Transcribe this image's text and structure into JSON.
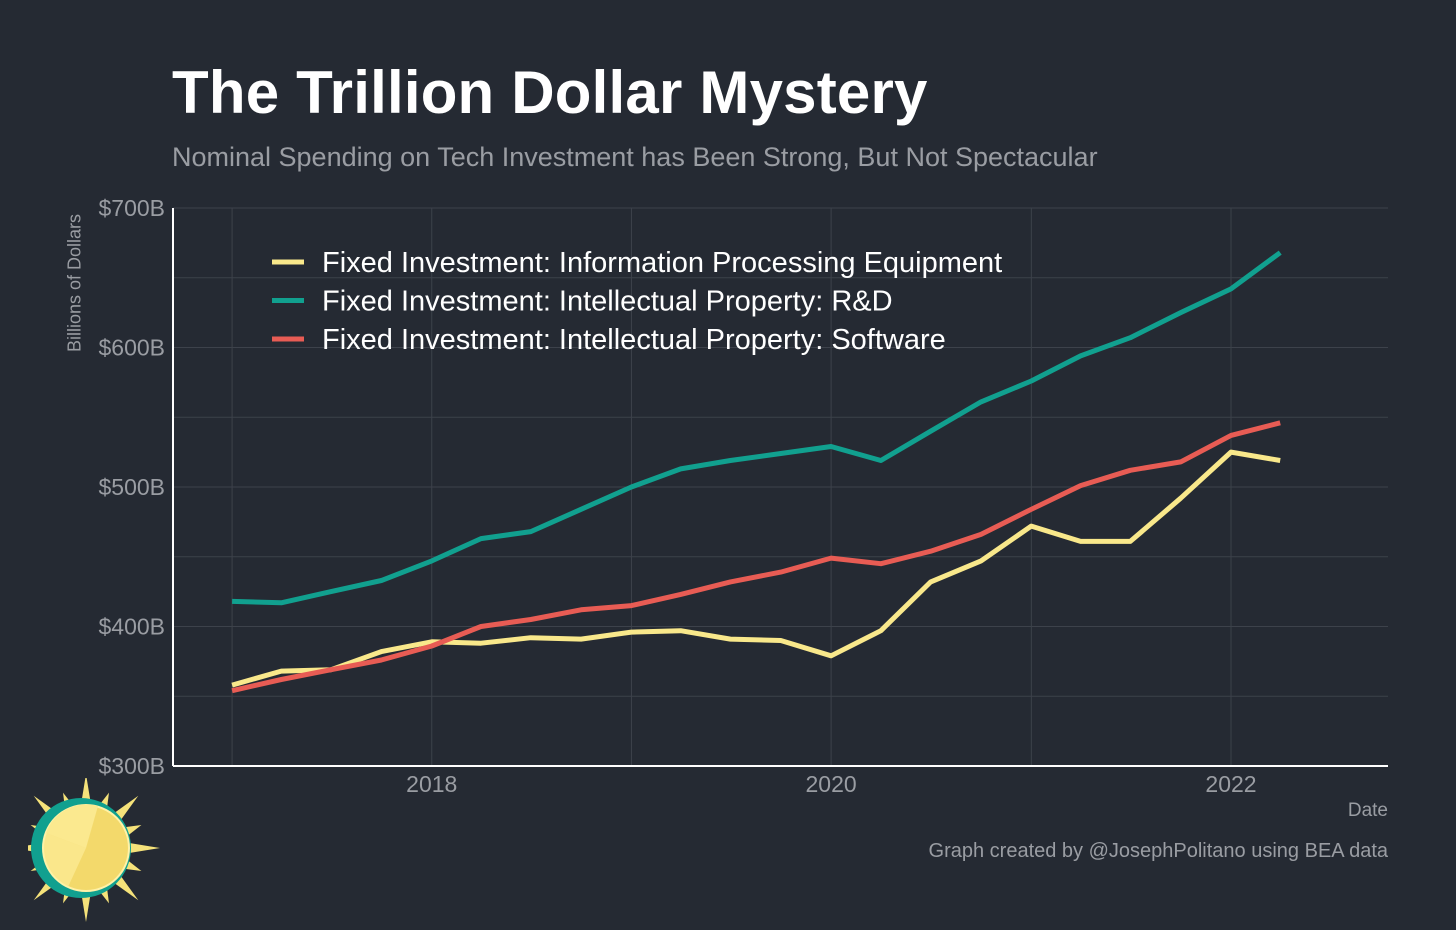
{
  "header": {
    "title": "The Trillion Dollar Mystery",
    "subtitle": "Nominal Spending on Tech Investment has Been Strong, But Not Spectacular"
  },
  "footer": {
    "credit": "Graph created by @JosephPolitano using BEA data"
  },
  "colors": {
    "background": "#252a33",
    "grid": "#3d424b",
    "axis": "#ffffff",
    "muted_text": "#9a9da3"
  },
  "logo_icon": "sun-logo-icon",
  "chart_data": {
    "type": "line",
    "xlabel": "Date",
    "ylabel": "Billions of Dollars",
    "xlim": [
      "2016-09-15",
      "2022-10-15"
    ],
    "ylim": [
      300,
      700
    ],
    "x_ticks": [
      "2018",
      "2020",
      "2022"
    ],
    "y_ticks": [
      "$300B",
      "$400B",
      "$500B",
      "$600B",
      "$700B"
    ],
    "y_tick_values": [
      300,
      400,
      500,
      600,
      700
    ],
    "grid": true,
    "legend_position": "top-left",
    "x": [
      "2017-01-01",
      "2017-04-01",
      "2017-07-01",
      "2017-10-01",
      "2018-01-01",
      "2018-04-01",
      "2018-07-01",
      "2018-10-01",
      "2019-01-01",
      "2019-04-01",
      "2019-07-01",
      "2019-10-01",
      "2020-01-01",
      "2020-04-01",
      "2020-07-01",
      "2020-10-01",
      "2021-01-01",
      "2021-04-01",
      "2021-07-01",
      "2021-10-01",
      "2022-01-01",
      "2022-04-01"
    ],
    "series": [
      {
        "name": "Fixed Investment: Information Processing Equipment",
        "color": "#f9e88b",
        "values": [
          358,
          368,
          369,
          382,
          389,
          388,
          392,
          391,
          396,
          397,
          391,
          390,
          379,
          397,
          432,
          447,
          472,
          461,
          461,
          492,
          525,
          519
        ]
      },
      {
        "name": "Fixed Investment: Intellectual Property: R&D",
        "color": "#11a08f",
        "values": [
          418,
          417,
          425,
          433,
          447,
          463,
          468,
          484,
          500,
          513,
          519,
          524,
          529,
          519,
          540,
          561,
          576,
          594,
          607,
          625,
          642,
          668
        ]
      },
      {
        "name": "Fixed Investment: Intellectual Property: Software",
        "color": "#e85c54",
        "values": [
          354,
          362,
          369,
          376,
          386,
          400,
          405,
          412,
          415,
          423,
          432,
          439,
          449,
          445,
          454,
          466,
          484,
          501,
          512,
          518,
          537,
          546
        ]
      }
    ]
  }
}
